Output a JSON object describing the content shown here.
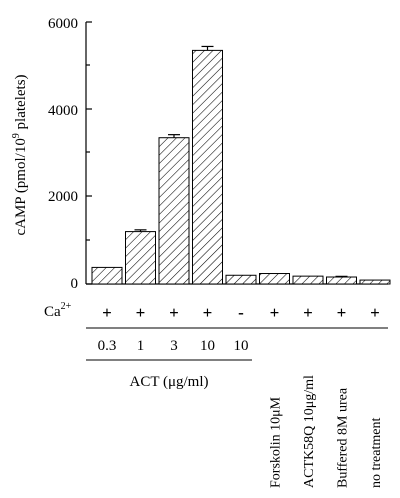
{
  "chart_data": {
    "type": "bar",
    "ylabel": "cAMP (pmol/10",
    "ylabel_sup": "9",
    "ylabel_tail": " platelets)",
    "ylim": [
      0,
      6000
    ],
    "yticks": [
      "0",
      "2000",
      "4000",
      "6000"
    ],
    "pattern": "hatched",
    "values": [
      380,
      1200,
      3350,
      5350,
      200,
      240,
      180,
      160,
      90
    ],
    "errors": [
      0,
      40,
      70,
      90,
      0,
      0,
      0,
      15,
      0
    ],
    "ca_row_label": "Ca",
    "ca_row_sup": "2+",
    "ca_signs": [
      "+",
      "+",
      "+",
      "+",
      "-",
      "+",
      "+",
      "+",
      "+"
    ],
    "act_doses": [
      "0.3",
      "1",
      "3",
      "10",
      "10"
    ],
    "act_group_label": "ACT (μg/ml)",
    "control_labels": [
      "Forskolin 10μM",
      "ACTK58Q 10μg/ml",
      "Buffered 8M urea",
      "no treatment"
    ]
  }
}
